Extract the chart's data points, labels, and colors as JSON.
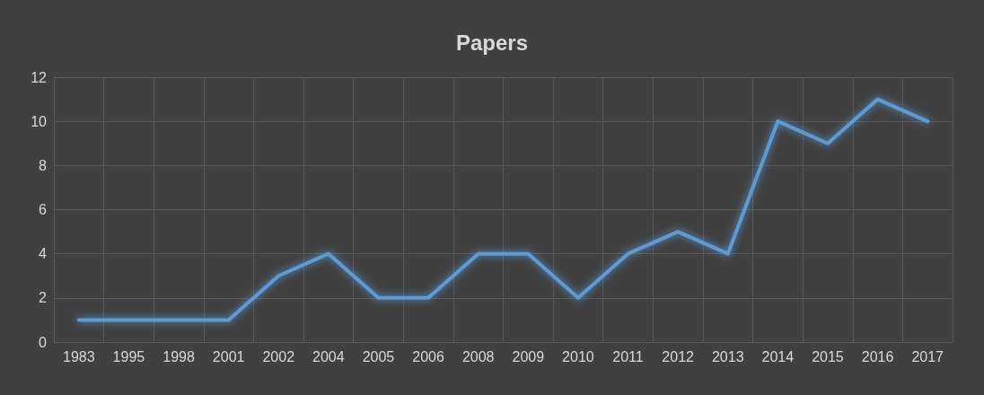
{
  "chart_data": {
    "type": "line",
    "title": "Papers",
    "categories": [
      "1983",
      "1995",
      "1998",
      "2001",
      "2002",
      "2004",
      "2005",
      "2006",
      "2008",
      "2009",
      "2010",
      "2011",
      "2012",
      "2013",
      "2014",
      "2015",
      "2016",
      "2017"
    ],
    "series": [
      {
        "color": "#5b9bd5",
        "values": [
          1,
          1,
          1,
          1,
          3,
          4,
          2,
          2,
          4,
          4,
          2,
          4,
          5,
          4,
          10,
          9,
          11,
          10
        ]
      }
    ],
    "ylim": [
      0,
      12
    ],
    "yticks": [
      0,
      2,
      4,
      6,
      8,
      10,
      12
    ],
    "grid": true,
    "marker": "none",
    "line_style": "solid"
  }
}
